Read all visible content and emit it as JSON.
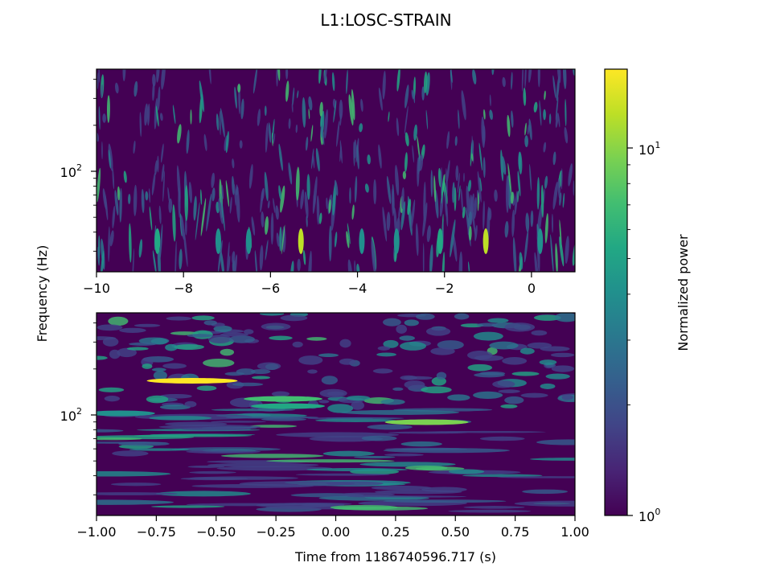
{
  "chart_data": [
    {
      "type": "heatmap",
      "title": "L1:LOSC-STRAIN",
      "xlabel": "",
      "ylabel": "Frequency (Hz)",
      "xlim": [
        -10,
        1
      ],
      "xticks": [
        -10,
        -8,
        -6,
        -4,
        -2,
        0
      ],
      "xtick_labels": [
        "−10",
        "−8",
        "−6",
        "−4",
        "−2",
        "0"
      ],
      "yscale": "log",
      "yticks": [
        100
      ],
      "ytick_labels": [
        "10",
        "2"
      ],
      "colormap": "viridis",
      "features": [
        {
          "t": -5.3,
          "strength": 0.85
        },
        {
          "t": -1.05,
          "strength": 0.9
        },
        {
          "t": -8.6,
          "strength": 0.55
        },
        {
          "t": -7.2,
          "strength": 0.5
        },
        {
          "t": -6.5,
          "strength": 0.45
        },
        {
          "t": -3.9,
          "strength": 0.45
        },
        {
          "t": -3.1,
          "strength": 0.5
        },
        {
          "t": -2.1,
          "strength": 0.55
        },
        {
          "t": 0.2,
          "strength": 0.5
        }
      ]
    },
    {
      "type": "heatmap",
      "xlabel": "Time from 1186740596.717 (s)",
      "ylabel": "",
      "xlim": [
        -1.0,
        1.0
      ],
      "xticks": [
        -1.0,
        -0.75,
        -0.5,
        -0.25,
        0.0,
        0.25,
        0.5,
        0.75,
        1.0
      ],
      "xtick_labels": [
        "−1.00",
        "−0.75",
        "−0.50",
        "−0.25",
        "0.00",
        "0.25",
        "0.50",
        "0.75",
        "1.00"
      ],
      "yscale": "log",
      "yticks": [
        100
      ],
      "ytick_labels": [
        "10",
        "2"
      ],
      "colormap": "viridis",
      "features": [
        {
          "t": -0.6,
          "strength": 0.95
        },
        {
          "t": -0.22,
          "strength": 0.7
        },
        {
          "t": 0.38,
          "strength": 0.8
        },
        {
          "t": -0.9,
          "strength": 0.5
        },
        {
          "t": -0.2,
          "strength": 0.6
        }
      ]
    }
  ],
  "suptitle": "L1:LOSC-STRAIN",
  "shared_ylabel": "Frequency (Hz)",
  "colorbar": {
    "label": "Normalized power",
    "scale": "log",
    "range": [
      1,
      18
    ],
    "ticks": [
      {
        "value": 10,
        "base": "10",
        "exp": "1"
      },
      {
        "value": 1,
        "base": "10",
        "exp": "0"
      }
    ]
  }
}
